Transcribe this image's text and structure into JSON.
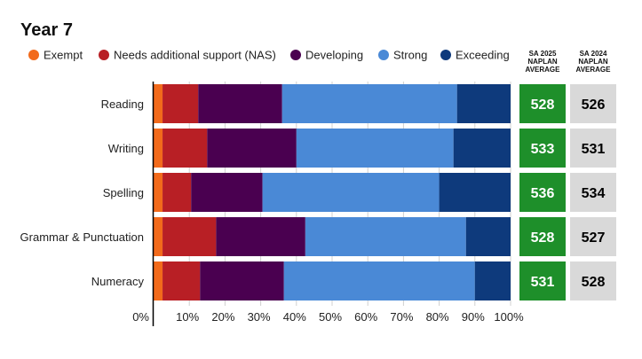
{
  "chart_data": {
    "type": "bar",
    "stacked": true,
    "orientation": "horizontal",
    "title": "Year 7",
    "categories": [
      "Reading",
      "Writing",
      "Spelling",
      "Grammar & Punctuation",
      "Numeracy"
    ],
    "series": [
      {
        "name": "Exempt",
        "color": "#f26a1b",
        "values": [
          2.5,
          2.5,
          2.5,
          2.5,
          2.5
        ]
      },
      {
        "name": "Needs additional support (NAS)",
        "color": "#b81f25",
        "values": [
          10,
          12.5,
          8,
          15,
          10.5
        ]
      },
      {
        "name": "Developing",
        "color": "#4a0050",
        "values": [
          23.5,
          25,
          20,
          25,
          23.5
        ]
      },
      {
        "name": "Strong",
        "color": "#4a89d6",
        "values": [
          49,
          44,
          49.5,
          45,
          53.5
        ]
      },
      {
        "name": "Exceeding",
        "color": "#0e3a7c",
        "values": [
          15,
          16,
          20,
          12.5,
          10
        ]
      }
    ],
    "x_ticks": [
      "0%",
      "10%",
      "20%",
      "30%",
      "40%",
      "50%",
      "60%",
      "70%",
      "80%",
      "90%",
      "100%"
    ],
    "xlim": [
      0,
      100
    ],
    "legend_position": "top",
    "averages": {
      "sa2025": {
        "header": [
          "SA 2025",
          "NAPLAN",
          "AVERAGE"
        ],
        "color": "#1e8f2a",
        "values": [
          "528",
          "533",
          "536",
          "528",
          "531"
        ]
      },
      "sa2024": {
        "header": [
          "SA 2024",
          "NAPLAN",
          "AVERAGE"
        ],
        "color": "#d9d9d9",
        "values": [
          "526",
          "531",
          "534",
          "527",
          "528"
        ]
      }
    }
  }
}
